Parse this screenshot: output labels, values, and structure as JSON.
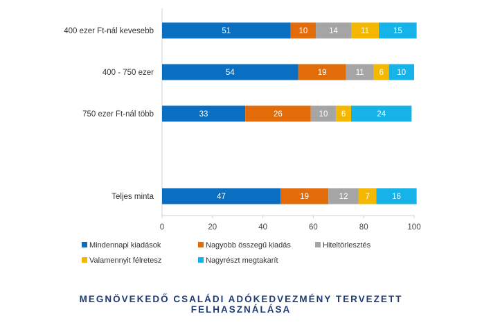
{
  "chart_data": {
    "type": "bar",
    "orientation": "horizontal",
    "stacked": true,
    "categories": [
      "400 ezer Ft-nál kevesebb",
      "400 - 750 ezer",
      "750 ezer Ft-nál több",
      "Teljes minta"
    ],
    "series": [
      {
        "name": "Mindennapi kiadások",
        "color": "#0b6fc1",
        "values": [
          51,
          54,
          33,
          47
        ]
      },
      {
        "name": "Nagyobb összegű kiadás",
        "color": "#e36c0a",
        "values": [
          10,
          19,
          26,
          19
        ]
      },
      {
        "name": "Hiteltörlesztés",
        "color": "#a5a5a5",
        "values": [
          14,
          11,
          10,
          12
        ]
      },
      {
        "name": "Valamennyit félretesz",
        "color": "#f5b800",
        "values": [
          11,
          6,
          6,
          7
        ]
      },
      {
        "name": "Nagyrészt megtakarít",
        "color": "#15b3e8",
        "values": [
          15,
          10,
          24,
          16
        ]
      }
    ],
    "xlim": [
      0,
      100
    ],
    "xticks": [
      0,
      20,
      40,
      60,
      80,
      100
    ],
    "grid": false,
    "legend_position": "bottom",
    "title_line1": "MEGNÖVEKEDŐ CSALÁDI ADÓKEDVEZMÉNY TERVEZETT",
    "title_line2": "FELHASZNÁLÁSA"
  }
}
